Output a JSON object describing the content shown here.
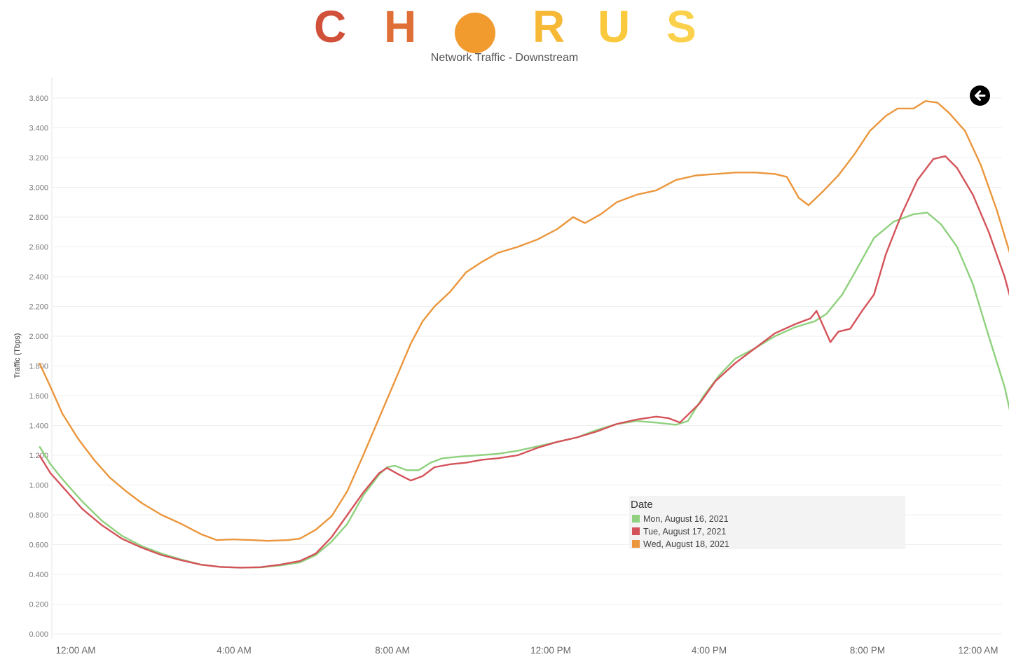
{
  "logo": {
    "letters": [
      {
        "text": "C",
        "color": "#d1503a"
      },
      {
        "text": "H",
        "color": "#df6f36"
      },
      {
        "text": "R",
        "color": "#f6b835"
      },
      {
        "text": "U",
        "color": "#fac93c"
      },
      {
        "text": "S",
        "color": "#fbd04a"
      }
    ],
    "o_color": "#f19a2e"
  },
  "chart_data": {
    "type": "line",
    "title": "Network Traffic - Downstream",
    "ylabel": "Traffic (Tbps)",
    "xlabel": "",
    "ylim": [
      0,
      3.6
    ],
    "y_ticks": [
      "0.000",
      "0.200",
      "0.400",
      "0.600",
      "0.800",
      "1.000",
      "1.200",
      "1.400",
      "1.600",
      "1.800",
      "2.000",
      "2.200",
      "2.400",
      "2.600",
      "2.800",
      "3.000",
      "3.200",
      "3.400",
      "3.600"
    ],
    "x_ticks": [
      "12:00 AM",
      "4:00 AM",
      "8:00 AM",
      "12:00 PM",
      "4:00 PM",
      "8:00 PM",
      "12:00 AM"
    ],
    "x_tick_hours": [
      0,
      4,
      8,
      12,
      16,
      20,
      24
    ],
    "xlim_hours": [
      -0.6,
      24
    ],
    "grid": true,
    "legend_position": "bottom-right",
    "legend_title": "Date",
    "series": [
      {
        "name": "Mon, August 16, 2021",
        "color": "#8fd17e",
        "points": [
          [
            -0.58,
            1.26
          ],
          [
            -0.3,
            1.14
          ],
          [
            0,
            1.04
          ],
          [
            0.5,
            0.89
          ],
          [
            1,
            0.76
          ],
          [
            1.5,
            0.66
          ],
          [
            2,
            0.59
          ],
          [
            2.5,
            0.54
          ],
          [
            3,
            0.5
          ],
          [
            3.5,
            0.465
          ],
          [
            4,
            0.45
          ],
          [
            4.5,
            0.445
          ],
          [
            5,
            0.447
          ],
          [
            5.5,
            0.46
          ],
          [
            6,
            0.48
          ],
          [
            6.4,
            0.53
          ],
          [
            6.8,
            0.62
          ],
          [
            7.2,
            0.74
          ],
          [
            7.6,
            0.93
          ],
          [
            8,
            1.07
          ],
          [
            8.2,
            1.12
          ],
          [
            8.4,
            1.13
          ],
          [
            8.7,
            1.1
          ],
          [
            9,
            1.1
          ],
          [
            9.3,
            1.15
          ],
          [
            9.6,
            1.18
          ],
          [
            10,
            1.19
          ],
          [
            10.5,
            1.2
          ],
          [
            11,
            1.21
          ],
          [
            11.5,
            1.23
          ],
          [
            12,
            1.26
          ],
          [
            12.5,
            1.29
          ],
          [
            13,
            1.32
          ],
          [
            13.5,
            1.37
          ],
          [
            14,
            1.41
          ],
          [
            14.5,
            1.43
          ],
          [
            15,
            1.42
          ],
          [
            15.5,
            1.405
          ],
          [
            15.8,
            1.43
          ],
          [
            16.2,
            1.6
          ],
          [
            16.6,
            1.74
          ],
          [
            17,
            1.85
          ],
          [
            17.5,
            1.92
          ],
          [
            18,
            2.0
          ],
          [
            18.5,
            2.06
          ],
          [
            19,
            2.1
          ],
          [
            19.3,
            2.15
          ],
          [
            19.7,
            2.28
          ],
          [
            20,
            2.42
          ],
          [
            20.5,
            2.66
          ],
          [
            21,
            2.77
          ],
          [
            21.5,
            2.82
          ],
          [
            21.85,
            2.83
          ],
          [
            22.2,
            2.75
          ],
          [
            22.6,
            2.6
          ],
          [
            23,
            2.35
          ],
          [
            23.4,
            2.0
          ],
          [
            23.8,
            1.66
          ],
          [
            24,
            1.42
          ],
          [
            24.35,
            1.23
          ]
        ]
      },
      {
        "name": "Tue, August 17, 2021",
        "color": "#d4535a",
        "points": [
          [
            -0.58,
            1.2
          ],
          [
            -0.3,
            1.08
          ],
          [
            0,
            0.99
          ],
          [
            0.5,
            0.84
          ],
          [
            1,
            0.73
          ],
          [
            1.5,
            0.64
          ],
          [
            2,
            0.58
          ],
          [
            2.5,
            0.53
          ],
          [
            3,
            0.495
          ],
          [
            3.5,
            0.465
          ],
          [
            4,
            0.45
          ],
          [
            4.5,
            0.445
          ],
          [
            5,
            0.448
          ],
          [
            5.5,
            0.465
          ],
          [
            6,
            0.49
          ],
          [
            6.4,
            0.54
          ],
          [
            6.8,
            0.65
          ],
          [
            7.2,
            0.8
          ],
          [
            7.6,
            0.95
          ],
          [
            8,
            1.08
          ],
          [
            8.2,
            1.115
          ],
          [
            8.5,
            1.07
          ],
          [
            8.8,
            1.03
          ],
          [
            9.1,
            1.06
          ],
          [
            9.4,
            1.12
          ],
          [
            9.8,
            1.14
          ],
          [
            10.2,
            1.15
          ],
          [
            10.6,
            1.17
          ],
          [
            11,
            1.18
          ],
          [
            11.5,
            1.2
          ],
          [
            12,
            1.25
          ],
          [
            12.5,
            1.29
          ],
          [
            13,
            1.32
          ],
          [
            13.5,
            1.36
          ],
          [
            14,
            1.41
          ],
          [
            14.5,
            1.44
          ],
          [
            15,
            1.46
          ],
          [
            15.3,
            1.45
          ],
          [
            15.6,
            1.42
          ],
          [
            16.1,
            1.55
          ],
          [
            16.5,
            1.7
          ],
          [
            17,
            1.82
          ],
          [
            17.5,
            1.92
          ],
          [
            18,
            2.02
          ],
          [
            18.5,
            2.08
          ],
          [
            18.9,
            2.12
          ],
          [
            19.05,
            2.17
          ],
          [
            19.2,
            2.08
          ],
          [
            19.4,
            1.96
          ],
          [
            19.6,
            2.03
          ],
          [
            19.9,
            2.05
          ],
          [
            20.2,
            2.17
          ],
          [
            20.5,
            2.28
          ],
          [
            20.8,
            2.55
          ],
          [
            21.2,
            2.82
          ],
          [
            21.6,
            3.05
          ],
          [
            22,
            3.19
          ],
          [
            22.3,
            3.21
          ],
          [
            22.6,
            3.13
          ],
          [
            23,
            2.95
          ],
          [
            23.4,
            2.7
          ],
          [
            23.8,
            2.4
          ],
          [
            24.35,
            1.86
          ]
        ]
      },
      {
        "name": "Wed, August 18, 2021",
        "color": "#eb963c",
        "points": [
          [
            -0.58,
            1.82
          ],
          [
            -0.3,
            1.66
          ],
          [
            0,
            1.48
          ],
          [
            0.4,
            1.31
          ],
          [
            0.8,
            1.17
          ],
          [
            1.2,
            1.05
          ],
          [
            1.6,
            0.96
          ],
          [
            2,
            0.88
          ],
          [
            2.5,
            0.8
          ],
          [
            3,
            0.74
          ],
          [
            3.5,
            0.67
          ],
          [
            3.9,
            0.63
          ],
          [
            4.3,
            0.635
          ],
          [
            4.8,
            0.63
          ],
          [
            5.2,
            0.625
          ],
          [
            5.7,
            0.63
          ],
          [
            6,
            0.64
          ],
          [
            6.4,
            0.7
          ],
          [
            6.8,
            0.79
          ],
          [
            7.2,
            0.96
          ],
          [
            7.6,
            1.2
          ],
          [
            8,
            1.45
          ],
          [
            8.4,
            1.7
          ],
          [
            8.8,
            1.95
          ],
          [
            9.1,
            2.1
          ],
          [
            9.4,
            2.2
          ],
          [
            9.8,
            2.3
          ],
          [
            10.2,
            2.43
          ],
          [
            10.6,
            2.5
          ],
          [
            11,
            2.56
          ],
          [
            11.5,
            2.6
          ],
          [
            12,
            2.65
          ],
          [
            12.5,
            2.72
          ],
          [
            12.9,
            2.8
          ],
          [
            13.2,
            2.76
          ],
          [
            13.6,
            2.82
          ],
          [
            14,
            2.9
          ],
          [
            14.5,
            2.95
          ],
          [
            15,
            2.98
          ],
          [
            15.5,
            3.05
          ],
          [
            16,
            3.08
          ],
          [
            16.5,
            3.09
          ],
          [
            17,
            3.1
          ],
          [
            17.5,
            3.1
          ],
          [
            18,
            3.09
          ],
          [
            18.3,
            3.07
          ],
          [
            18.6,
            2.93
          ],
          [
            18.85,
            2.88
          ],
          [
            19.2,
            2.97
          ],
          [
            19.6,
            3.08
          ],
          [
            20,
            3.22
          ],
          [
            20.4,
            3.38
          ],
          [
            20.8,
            3.48
          ],
          [
            21.1,
            3.53
          ],
          [
            21.5,
            3.53
          ],
          [
            21.8,
            3.58
          ],
          [
            22.1,
            3.57
          ],
          [
            22.4,
            3.5
          ],
          [
            22.8,
            3.38
          ],
          [
            23.2,
            3.15
          ],
          [
            23.6,
            2.85
          ],
          [
            24,
            2.5
          ],
          [
            24.35,
            1.9
          ]
        ]
      }
    ]
  }
}
